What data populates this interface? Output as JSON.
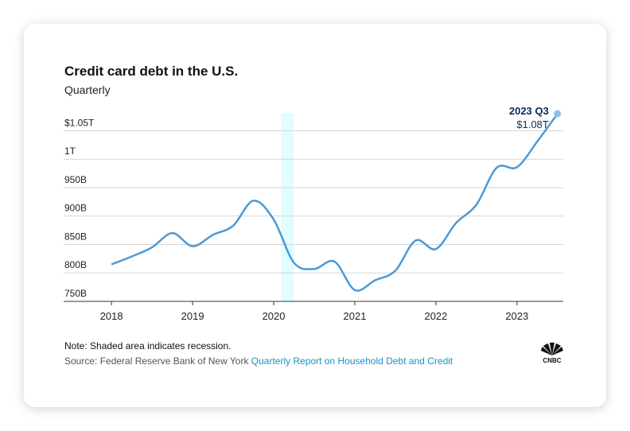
{
  "chart_data": {
    "type": "line",
    "title": "Credit card debt in the U.S.",
    "subtitle": "Quarterly",
    "x": [
      2018,
      2018.25,
      2018.5,
      2018.75,
      2019,
      2019.25,
      2019.5,
      2019.75,
      2020,
      2020.25,
      2020.5,
      2020.75,
      2021,
      2021.25,
      2021.5,
      2021.75,
      2022,
      2022.25,
      2022.5,
      2022.75,
      2023,
      2023.25,
      2023.5
    ],
    "series": [
      {
        "name": "Credit card debt",
        "color": "#4b9ad6",
        "values": [
          815,
          829,
          845,
          870,
          847,
          867,
          883,
          927,
          894,
          818,
          807,
          820,
          770,
          787,
          804,
          857,
          842,
          888,
          920,
          985,
          986,
          1031,
          1080
        ]
      }
    ],
    "xlim": [
      2017.41,
      2023.57
    ],
    "xticks": [
      2018,
      2019,
      2020,
      2021,
      2022,
      2023
    ],
    "ylim": [
      750,
      1080
    ],
    "yticks": [
      {
        "value": 750,
        "label": "750B"
      },
      {
        "value": 800,
        "label": "800B"
      },
      {
        "value": 850,
        "label": "850B"
      },
      {
        "value": 900,
        "label": "900B"
      },
      {
        "value": 950,
        "label": "950B"
      },
      {
        "value": 1000,
        "label": "1T"
      },
      {
        "value": 1050,
        "label": "$1.05T"
      }
    ],
    "grid": true,
    "recession": [
      2020.09,
      2020.25
    ],
    "annotation": {
      "label": "2023 Q3",
      "value_label": "$1.08T"
    },
    "note": "Note: Shaded area indicates recession.",
    "source": "Source: Federal Reserve Bank of New York",
    "source_link": "Quarterly Report on Household Debt and Credit",
    "logo": "CNBC"
  }
}
